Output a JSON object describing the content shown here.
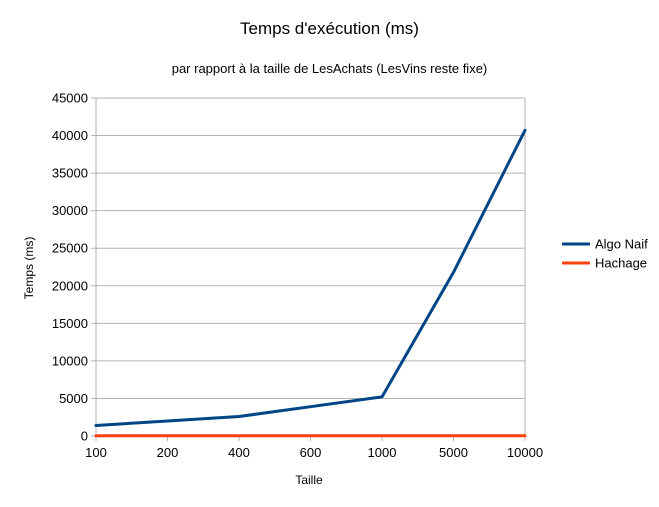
{
  "chart_data": {
    "type": "line",
    "title": "Temps d'exécution (ms)",
    "subtitle": "par rapport à la taille de LesAchats (LesVins reste fixe)",
    "xlabel": "Taille",
    "ylabel": "Temps (ms)",
    "categories": [
      "100",
      "200",
      "400",
      "600",
      "1000",
      "5000",
      "10000"
    ],
    "ylim": [
      0,
      45000
    ],
    "yticks": [
      "0",
      "5000",
      "10000",
      "15000",
      "20000",
      "25000",
      "30000",
      "35000",
      "40000",
      "45000"
    ],
    "grid": true,
    "legend_position": "right",
    "series": [
      {
        "name": "Algo Naif",
        "color": "#004586",
        "values": [
          1400,
          2000,
          2600,
          3900,
          5200,
          21800,
          40700
        ]
      },
      {
        "name": "Hachage",
        "color": "#ff420e",
        "values": [
          40,
          40,
          40,
          40,
          40,
          40,
          40
        ]
      }
    ]
  }
}
